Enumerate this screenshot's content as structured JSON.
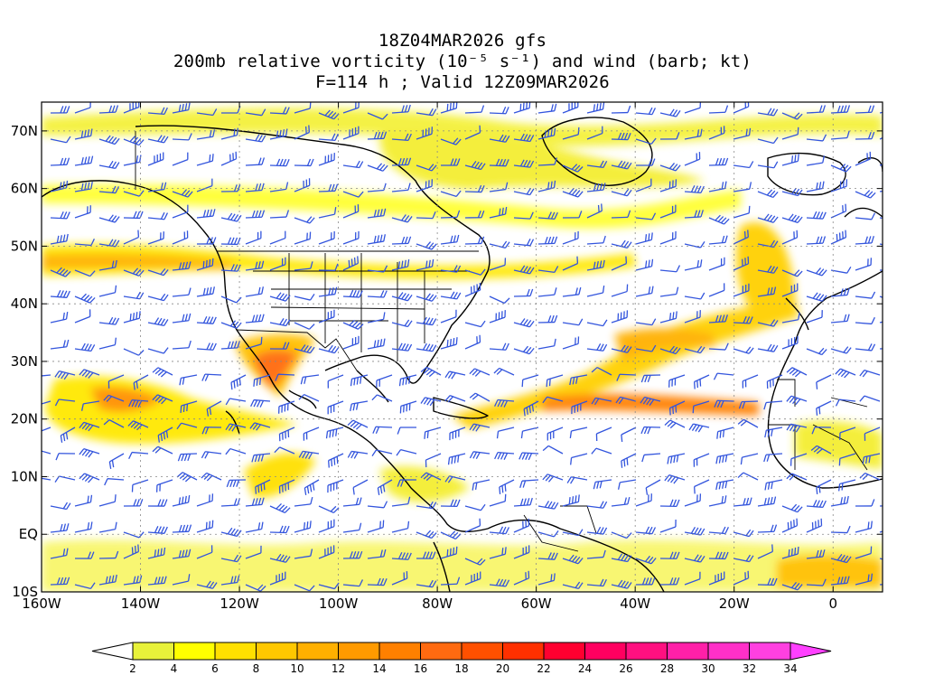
{
  "title": {
    "line1": "18Z04MAR2026 gfs",
    "line2": "200mb relative vorticity (10⁻⁵ s⁻¹) and wind (barb; kt)",
    "line3": "F=114 h ; Valid 12Z09MAR2026"
  },
  "map": {
    "lon_range": [
      -160,
      10
    ],
    "lat_range": [
      -10,
      75
    ],
    "y_ticks": [
      "70N",
      "60N",
      "50N",
      "40N",
      "30N",
      "20N",
      "10N",
      "EQ",
      "10S"
    ],
    "x_ticks": [
      "160W",
      "140W",
      "120W",
      "100W",
      "80W",
      "60W",
      "40W",
      "20W",
      "0"
    ],
    "grid": "dotted",
    "barb_color": "#3355dd",
    "coastline_color": "#000000"
  },
  "colorbar": {
    "levels": [
      "2",
      "4",
      "6",
      "8",
      "10",
      "12",
      "14",
      "16",
      "18",
      "20",
      "22",
      "24",
      "26",
      "28",
      "30",
      "32",
      "34"
    ],
    "colors": [
      "#e8f23a",
      "#ffff00",
      "#ffe000",
      "#ffc800",
      "#ffb000",
      "#ff9a00",
      "#ff8000",
      "#ff6a10",
      "#ff5000",
      "#ff3000",
      "#ff0030",
      "#ff0060",
      "#ff1080",
      "#ff20a8",
      "#ff30c8",
      "#ff40e0"
    ],
    "low_extend_color": "#ffffff",
    "high_extend_color": "#ff40ff"
  }
}
